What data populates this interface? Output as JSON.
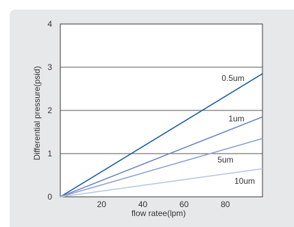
{
  "chart_data": {
    "type": "line",
    "title": "",
    "xlabel": "flow ratee(lpm)",
    "ylabel": "Differential pressure(psid)",
    "xlim": [
      0,
      98
    ],
    "ylim": [
      0,
      4
    ],
    "x_ticks": [
      "20",
      "40",
      "60",
      "80"
    ],
    "y_ticks": [
      "0",
      "1",
      "2",
      "3",
      "4"
    ],
    "grid": "horizontal",
    "series": [
      {
        "name": "0.5um",
        "color": "#1a5c9e",
        "x": [
          0,
          98
        ],
        "y": [
          0,
          2.85
        ]
      },
      {
        "name": "1um",
        "color": "#6f86c0",
        "x": [
          0,
          98
        ],
        "y": [
          0,
          1.85
        ]
      },
      {
        "name": "5um",
        "color": "#8fa2d2",
        "x": [
          0,
          98
        ],
        "y": [
          0,
          1.35
        ]
      },
      {
        "name": "10um",
        "color": "#b9c6e6",
        "x": [
          0,
          98
        ],
        "y": [
          0,
          0.65
        ]
      }
    ]
  }
}
